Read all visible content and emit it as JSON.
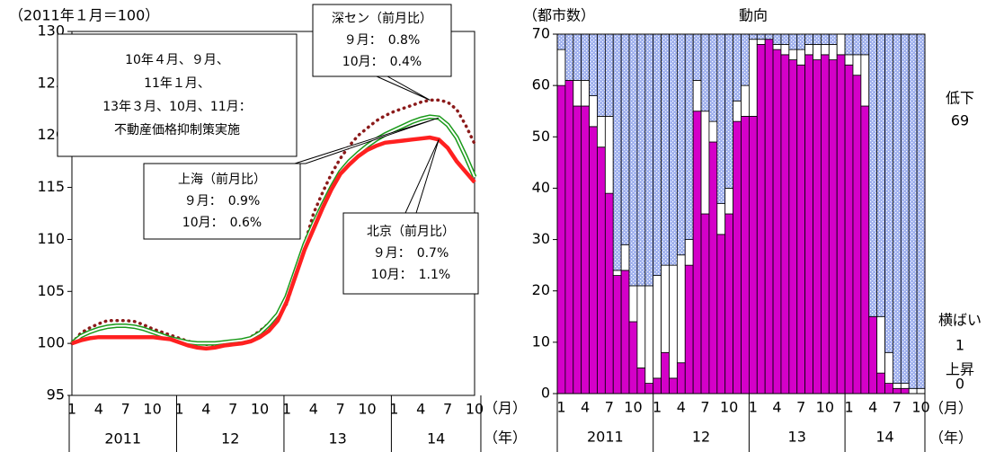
{
  "chart_data": [
    {
      "type": "line",
      "y_unit_label": "（2011年１月＝100）",
      "x_unit_label": "（月）",
      "year_unit_label": "（年）",
      "categories": [
        "1",
        null,
        null,
        "4",
        null,
        null,
        "7",
        null,
        null,
        "10",
        null,
        null,
        "1",
        null,
        null,
        "4",
        null,
        null,
        "7",
        null,
        null,
        "10",
        null,
        null,
        "1",
        null,
        null,
        "4",
        null,
        null,
        "7",
        null,
        null,
        "10",
        null,
        null,
        "1",
        null,
        null,
        "4",
        null,
        null,
        "7",
        null,
        null,
        "10"
      ],
      "year_labels": [
        "2011",
        "12",
        "13",
        "14"
      ],
      "ylim": [
        95,
        130
      ],
      "yticks": [
        95,
        100,
        105,
        110,
        115,
        120,
        125,
        130
      ],
      "series": [
        {
          "name": "深セン",
          "color": "#8b1a1a",
          "style": "dotted",
          "values": [
            100,
            101,
            101.5,
            101.9,
            102.2,
            102.2,
            102.2,
            102.1,
            101.8,
            101.4,
            101.1,
            100.8,
            100.5,
            100.2,
            100,
            99.9,
            99.9,
            100,
            100.1,
            100.3,
            100.6,
            101.2,
            101.9,
            102.7,
            103.8,
            106.5,
            109.5,
            112.5,
            114.5,
            116.3,
            117.8,
            119,
            120,
            120.7,
            121.4,
            121.9,
            122.3,
            122.6,
            122.9,
            123.2,
            123.4,
            123.4,
            123.2,
            122.5,
            121,
            119.2
          ]
        },
        {
          "name": "上海",
          "color": "#1a9a1a",
          "style": "double",
          "values": [
            100,
            100.7,
            101.1,
            101.4,
            101.6,
            101.7,
            101.7,
            101.6,
            101.4,
            101.1,
            100.8,
            100.5,
            100.3,
            100.1,
            100,
            100,
            100,
            100.1,
            100.2,
            100.3,
            100.5,
            101,
            101.8,
            102.8,
            104.5,
            107,
            109.5,
            111.5,
            113.3,
            115,
            116.5,
            117.5,
            118.3,
            119,
            119.6,
            120.1,
            120.5,
            120.9,
            121.3,
            121.6,
            121.8,
            121.7,
            121,
            119.8,
            118,
            116
          ]
        },
        {
          "name": "北京",
          "color": "#ff2020",
          "style": "thick",
          "values": [
            100,
            100.3,
            100.5,
            100.6,
            100.6,
            100.6,
            100.6,
            100.6,
            100.6,
            100.6,
            100.5,
            100.4,
            100.1,
            99.8,
            99.6,
            99.5,
            99.6,
            99.8,
            99.9,
            100,
            100.2,
            100.6,
            101.2,
            102.2,
            104,
            106.5,
            109,
            111,
            113,
            114.8,
            116.3,
            117.2,
            118,
            118.6,
            119,
            119.3,
            119.4,
            119.5,
            119.6,
            119.7,
            119.8,
            119.6,
            118.8,
            117.5,
            116.5,
            115.5
          ]
        }
      ],
      "annotations": [
        {
          "lines": [
            "10年４月、９月、",
            "11年１月、",
            "13年３月、10月、11月：",
            "不動産価格抑制策実施"
          ]
        },
        {
          "lines": [
            "深セン（前月比）",
            "９月：　0.8%",
            "10月：　0.4%"
          ]
        },
        {
          "lines": [
            "上海（前月比）",
            "９月：　0.9%",
            "10月：　0.6%"
          ]
        },
        {
          "lines": [
            "北京（前月比）",
            "９月：　0.7%",
            "10月：　1.1%"
          ]
        }
      ]
    },
    {
      "type": "stacked-bar",
      "y_unit_label": "（都市数）",
      "title": "動向",
      "x_unit_label": "（月）",
      "year_unit_label": "（年）",
      "categories": [
        "1",
        null,
        null,
        "4",
        null,
        null,
        "7",
        null,
        null,
        "10",
        null,
        null,
        "1",
        null,
        null,
        "4",
        null,
        null,
        "7",
        null,
        null,
        "10",
        null,
        null,
        "1",
        null,
        null,
        "4",
        null,
        null,
        "7",
        null,
        null,
        "10",
        null,
        null,
        "1",
        null,
        null,
        "4",
        null,
        null,
        "7",
        null,
        null,
        "10"
      ],
      "year_labels": [
        "2011",
        "12",
        "13",
        "14"
      ],
      "ylim": [
        0,
        70
      ],
      "yticks": [
        0,
        10,
        20,
        30,
        40,
        50,
        60,
        70
      ],
      "series": [
        {
          "name": "上昇",
          "color": "#d400c8",
          "values": [
            60,
            61,
            56,
            56,
            52,
            48,
            39,
            23,
            24,
            14,
            5,
            2,
            3,
            8,
            3,
            6,
            25,
            55,
            35,
            49,
            31,
            35,
            53,
            54,
            54,
            68,
            69,
            67,
            66,
            65,
            64,
            66,
            65,
            66,
            65,
            66,
            64,
            62,
            56,
            15,
            4,
            2,
            1,
            1,
            0,
            0
          ]
        },
        {
          "name": "横ばい",
          "color": "#ffffff",
          "values": [
            7,
            0,
            5,
            5,
            6,
            6,
            15,
            1,
            5,
            7,
            16,
            19,
            20,
            17,
            22,
            21,
            5,
            6,
            20,
            4,
            6,
            5,
            4,
            6,
            15,
            1,
            0,
            1,
            2,
            2,
            3,
            2,
            3,
            2,
            3,
            4,
            2,
            4,
            10,
            0,
            11,
            6,
            1,
            1,
            1,
            1
          ]
        },
        {
          "name": "低下",
          "color": "#9fb0ee",
          "values": [
            3,
            9,
            9,
            9,
            12,
            16,
            16,
            46,
            41,
            49,
            49,
            49,
            47,
            45,
            45,
            43,
            40,
            9,
            15,
            17,
            33,
            30,
            13,
            10,
            1,
            1,
            1,
            2,
            2,
            3,
            3,
            2,
            2,
            2,
            2,
            0,
            4,
            4,
            4,
            55,
            55,
            62,
            68,
            68,
            69,
            69
          ]
        }
      ]
    }
  ]
}
